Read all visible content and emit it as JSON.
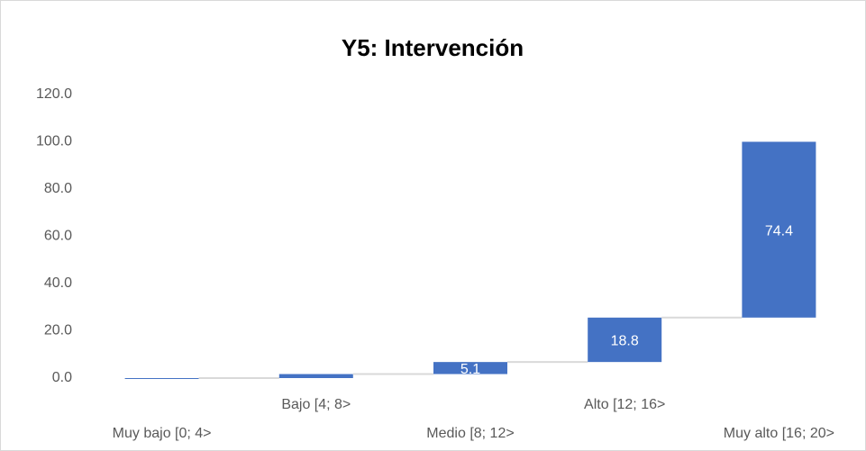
{
  "chart_data": {
    "type": "waterfall",
    "title": "Y5: Intervención",
    "categories": [
      "Muy bajo [0; 4>",
      "Bajo [4; 8>",
      "Medio [8; 12>",
      "Alto [12; 16>",
      "Muy alto [16; 20>"
    ],
    "values": [
      0.0,
      1.7,
      5.1,
      18.8,
      74.4
    ],
    "color": "#4472c4",
    "ylim": [
      0,
      120
    ],
    "yticks": [
      {
        "value": 0,
        "label": "0.0"
      },
      {
        "value": 20,
        "label": "20.0"
      },
      {
        "value": 40,
        "label": "40.0"
      },
      {
        "value": 60,
        "label": "60.0"
      },
      {
        "value": 80,
        "label": "80.0"
      },
      {
        "value": 100,
        "label": "100.0"
      },
      {
        "value": 120,
        "label": "120.0"
      }
    ]
  }
}
